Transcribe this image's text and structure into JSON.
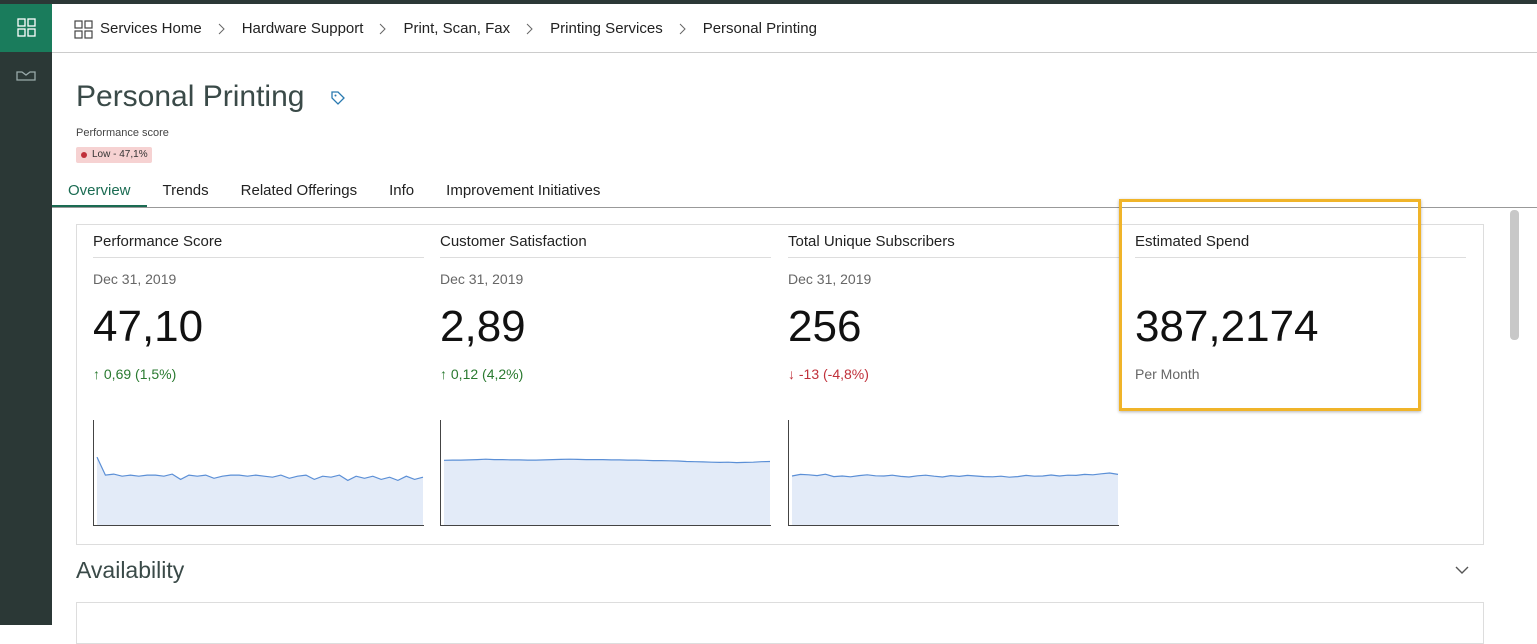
{
  "nav": {
    "breadcrumb": [
      "Services Home",
      "Hardware Support",
      "Print, Scan, Fax",
      "Printing Services",
      "Personal Printing"
    ]
  },
  "header": {
    "title": "Personal Printing",
    "score_label": "Performance score",
    "score_badge": "Low - 47,1%"
  },
  "tabs": [
    "Overview",
    "Trends",
    "Related Offerings",
    "Info",
    "Improvement Initiatives"
  ],
  "cards": [
    {
      "title": "Performance Score",
      "date": "Dec 31, 2019",
      "value": "47,10",
      "change": "↑ 0,69 (1,5%)",
      "trend": "up",
      "sparkline": {
        "ylim": [
          0,
          100
        ],
        "values": [
          65,
          48,
          49,
          47,
          48,
          47,
          48,
          48,
          47,
          49,
          44,
          48,
          47,
          48,
          45,
          47,
          48,
          48,
          47,
          48,
          47,
          46,
          48,
          45,
          47,
          48,
          44,
          47,
          46,
          48,
          43,
          47,
          45,
          47,
          44,
          46,
          43,
          47,
          44,
          46
        ]
      }
    },
    {
      "title": "Customer Satisfaction",
      "date": "Dec 31, 2019",
      "value": "2,89",
      "change": "↑ 0,12 (4,2%)",
      "trend": "up",
      "sparkline": {
        "ylim": [
          0,
          4.6
        ],
        "values": [
          2.85,
          2.86,
          2.86,
          2.87,
          2.88,
          2.9,
          2.88,
          2.88,
          2.87,
          2.87,
          2.86,
          2.86,
          2.87,
          2.88,
          2.89,
          2.9,
          2.89,
          2.88,
          2.88,
          2.88,
          2.87,
          2.87,
          2.86,
          2.86,
          2.85,
          2.84,
          2.84,
          2.83,
          2.82,
          2.8,
          2.79,
          2.78,
          2.77,
          2.76,
          2.77,
          2.75,
          2.76,
          2.77,
          2.79,
          2.8
        ]
      }
    },
    {
      "title": "Total Unique Subscribers",
      "date": "Dec 31, 2019",
      "value": "256",
      "change": "↓ -13 (-4,8%)",
      "trend": "down",
      "sparkline": {
        "ylim": [
          0,
          530
        ],
        "values": [
          250,
          258,
          256,
          252,
          259,
          247,
          250,
          246,
          252,
          256,
          251,
          250,
          254,
          248,
          245,
          251,
          254,
          249,
          245,
          252,
          248,
          253,
          250,
          247,
          246,
          249,
          244,
          247,
          253,
          249,
          250,
          255,
          250,
          254,
          253,
          258,
          256,
          261,
          265,
          258
        ]
      }
    },
    {
      "title": "Estimated Spend",
      "value": "387,2174",
      "note": "Per Month"
    }
  ],
  "sections": [
    "Availability"
  ]
}
